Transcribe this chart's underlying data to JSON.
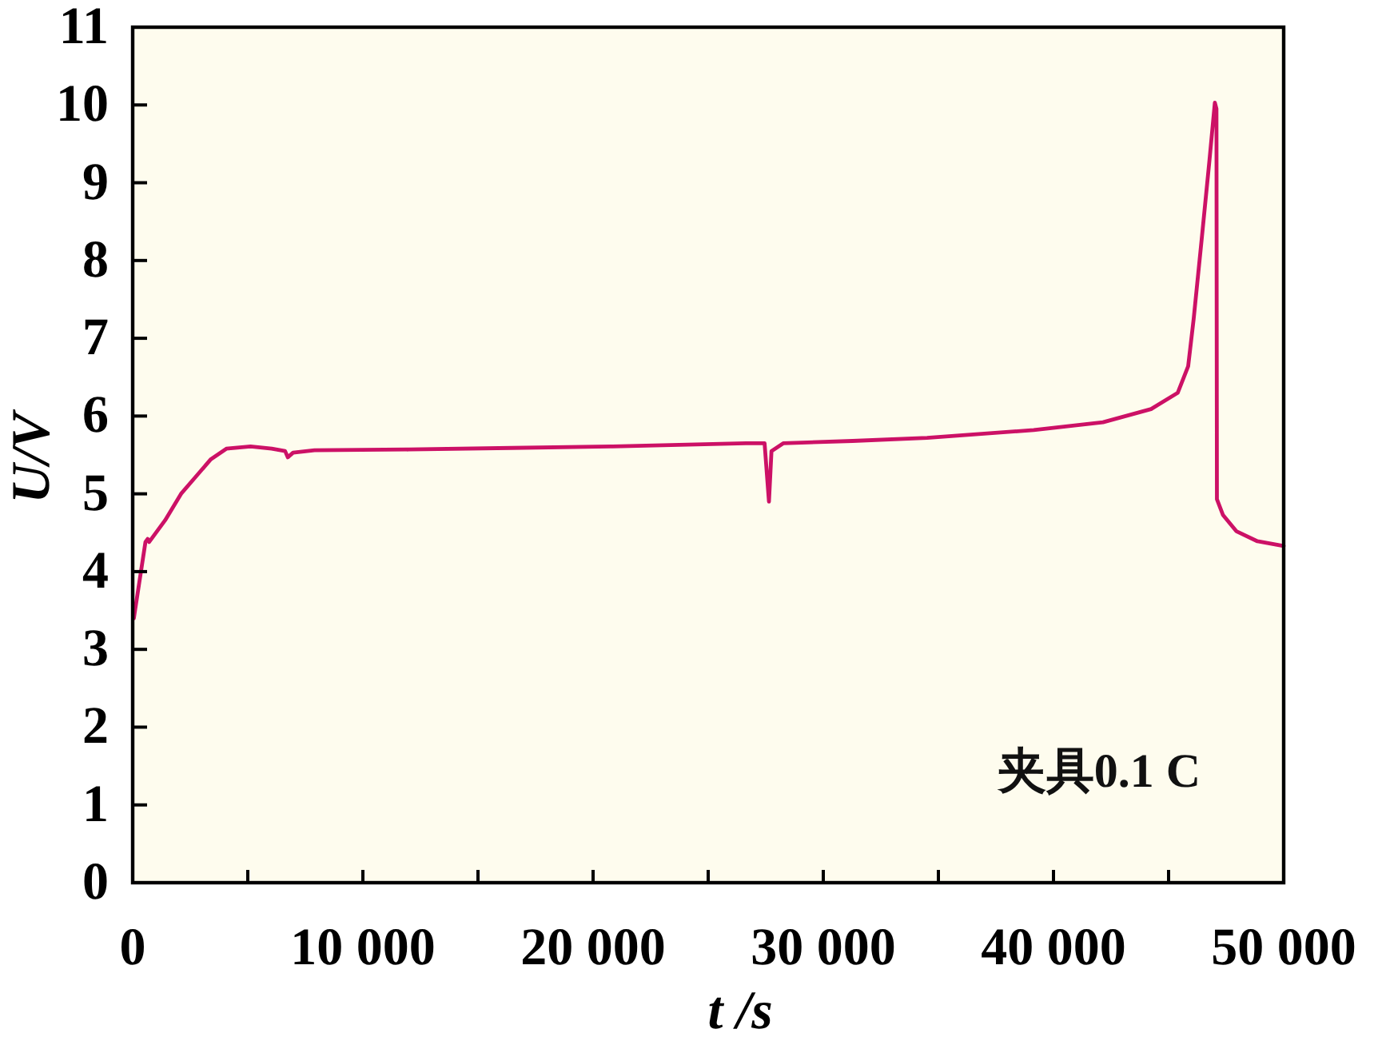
{
  "chart_data": {
    "type": "line",
    "xlabel": "t /s",
    "ylabel": "U/V",
    "annotations": [
      "夹具0.1 C"
    ],
    "x": [
      50,
      555,
      650,
      715,
      1410,
      2100,
      2800,
      3380,
      4070,
      5120,
      6040,
      6620,
      6740,
      6970,
      7900,
      12000,
      16460,
      20850,
      26640,
      27450,
      27640,
      27750,
      28260,
      31270,
      34510,
      39140,
      42150,
      44240,
      45400,
      45850,
      46090,
      46440,
      46780,
      47010,
      47080,
      47100,
      47360,
      47940,
      48860,
      50000
    ],
    "series": [
      {
        "color": "#cc1166",
        "values": [
          3.4,
          4.38,
          4.42,
          4.38,
          4.66,
          5.0,
          5.24,
          5.44,
          5.58,
          5.61,
          5.58,
          5.55,
          5.47,
          5.53,
          5.56,
          5.57,
          5.59,
          5.61,
          5.65,
          5.65,
          4.9,
          5.55,
          5.65,
          5.68,
          5.72,
          5.82,
          5.92,
          6.09,
          6.3,
          6.64,
          7.25,
          8.28,
          9.3,
          10.03,
          9.95,
          4.93,
          4.73,
          4.52,
          4.39,
          4.33
        ]
      }
    ],
    "xlim": [
      0,
      50000
    ],
    "ylim": [
      0,
      11
    ],
    "xticks": [
      0,
      {
        "value": 5000,
        "label": null
      },
      {
        "value": 10000,
        "label": "10 000"
      },
      {
        "value": 15000,
        "label": null
      },
      {
        "value": 20000,
        "label": "20 000"
      },
      {
        "value": 25000,
        "label": null
      },
      {
        "value": 30000,
        "label": "30 000"
      },
      {
        "value": 35000,
        "label": null
      },
      {
        "value": 40000,
        "label": "40 000"
      },
      {
        "value": 45000,
        "label": null
      },
      {
        "value": 50000,
        "label": "50 000"
      }
    ],
    "yticks": [
      0,
      1,
      2,
      3,
      4,
      5,
      6,
      7,
      8,
      9,
      10,
      11
    ],
    "line_style": "solid"
  }
}
